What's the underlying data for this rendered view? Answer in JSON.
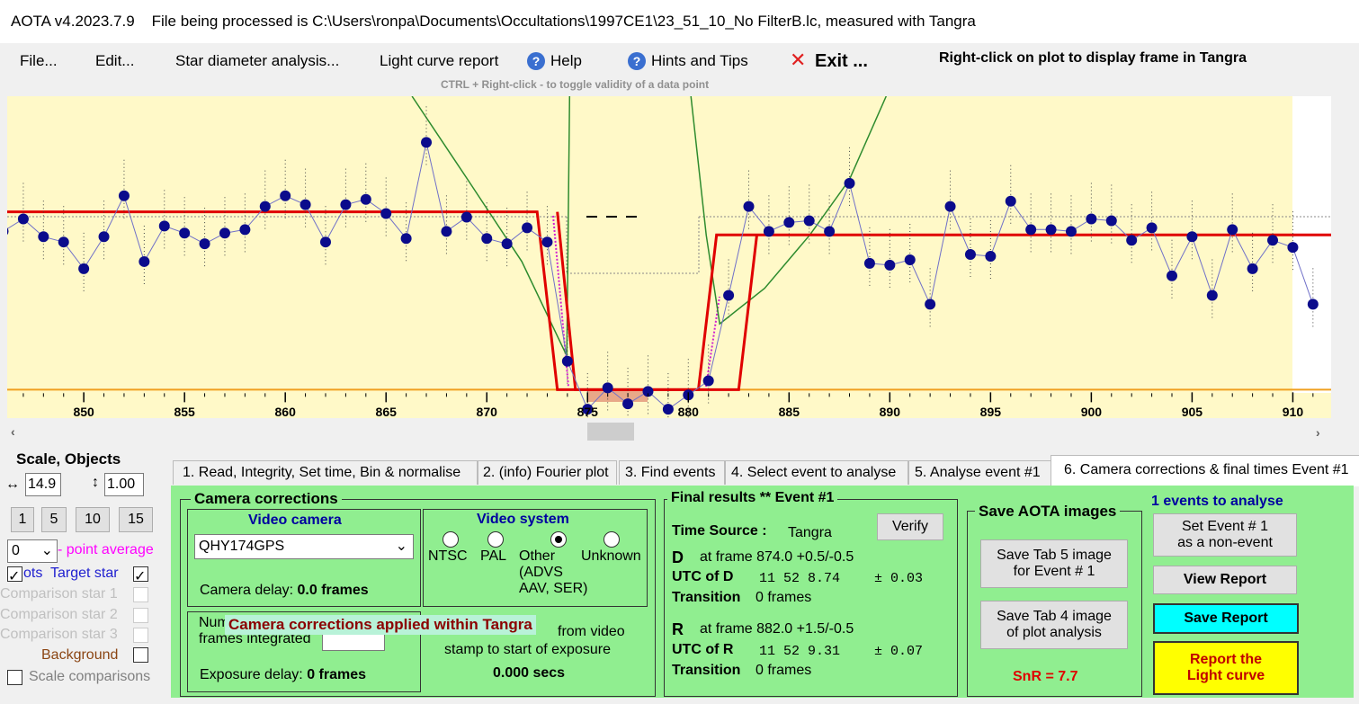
{
  "title_bar": {
    "app": "AOTA v4.2023.7.9",
    "file": "File being processed is C:\\Users\\ronpa\\Documents\\Occultations\\1997CE1\\23_51_10_No FilterB.lc, measured with Tangra"
  },
  "menu": {
    "items": [
      "File...",
      "Edit...",
      "Star diameter analysis...",
      "Light curve report",
      "Help",
      "Hints and Tips",
      "Exit ..."
    ],
    "right_hint": "Right-click on plot to display frame in Tangra",
    "ctrl_hint": "CTRL + Right-click  -  to toggle validity of a data point"
  },
  "plot": {
    "type": "scatter",
    "xlim": [
      846.2,
      911.9
    ],
    "ylim": [
      -0.16,
      1.65
    ],
    "xticks": [
      850,
      855,
      860,
      865,
      870,
      875,
      880,
      885,
      890,
      895,
      900,
      905,
      910
    ],
    "point_color": "#0b0b8c",
    "line_color": "#7070c8",
    "x": [
      846,
      847,
      848,
      849,
      850,
      851,
      852,
      853,
      854,
      855,
      856,
      857,
      858,
      859,
      860,
      861,
      862,
      863,
      864,
      865,
      866,
      867,
      868,
      869,
      870,
      871,
      872,
      873,
      874,
      875,
      876,
      877,
      878,
      879,
      880,
      881,
      882,
      883,
      884,
      885,
      886,
      887,
      888,
      889,
      890,
      891,
      892,
      893,
      894,
      895,
      896,
      897,
      898,
      899,
      900,
      901,
      902,
      903,
      904,
      905,
      906,
      907,
      908,
      909,
      910,
      911
    ],
    "values": [
      0.89,
      0.96,
      0.86,
      0.83,
      0.68,
      0.86,
      1.09,
      0.72,
      0.92,
      0.88,
      0.82,
      0.88,
      0.9,
      1.03,
      1.09,
      1.04,
      0.83,
      1.04,
      1.07,
      0.99,
      0.85,
      1.39,
      0.89,
      0.97,
      0.85,
      0.82,
      0.91,
      0.83,
      0.16,
      -0.11,
      0.01,
      -0.08,
      -0.01,
      -0.11,
      -0.03,
      0.05,
      0.53,
      1.03,
      0.89,
      0.94,
      0.95,
      0.89,
      1.16,
      0.71,
      0.7,
      0.73,
      0.48,
      1.03,
      0.76,
      0.75,
      1.06,
      0.9,
      0.9,
      0.89,
      0.96,
      0.95,
      0.84,
      0.91,
      0.64,
      0.86,
      0.53,
      0.9,
      0.68,
      0.84,
      0.8,
      0.48
    ],
    "model": {
      "color": "#e00000",
      "lines": [
        {
          "x": [
            846.2,
            872.5,
            873.5,
            880.5,
            881.4,
            911.9
          ],
          "values": [
            1.0,
            1.0,
            0,
            0,
            0.87,
            0.87
          ]
        },
        {
          "x": [
            873.5,
            874.4,
            882.5,
            883.4
          ],
          "values": [
            1.0,
            0,
            0,
            0.87
          ]
        }
      ]
    },
    "fit": {
      "color": "#2e8b2e",
      "x": [
        866.29,
        869.06,
        871.74,
        873.97,
        874.11,
        null,
        880.13,
        880.89,
        881.56,
        883.79,
        886.03,
        887.99,
        889.82
      ],
      "values": [
        1.65,
        1.18,
        0.72,
        0.19,
        1.65,
        null,
        1.65,
        0.87,
        0.37,
        0.57,
        0.87,
        1.18,
        1.65
      ]
    }
  },
  "left_panel": {
    "title": "Scale,  Objects",
    "scale_x": "14.9",
    "scale_y": "1.00",
    "buttons": [
      "1",
      "5",
      "10",
      "15"
    ],
    "average": "0",
    "average_label": "- point average",
    "plots": "ots",
    "objects": [
      "Target star",
      "Comparison star 1",
      "Comparison star 2",
      "Comparison star 3",
      "Background",
      "Scale comparisons"
    ]
  },
  "tabs": [
    "1.  Read, Integrity, Set time, Bin & normalise",
    "2. (info)  Fourier plot",
    "3. Find events",
    "4. Select event to analyse",
    "5. Analyse event #1",
    "6. Camera corrections & final times Event #1"
  ],
  "camera": {
    "title": "Camera corrections",
    "video_camera": "Video camera",
    "camera_model": "QHY174GPS",
    "camera_delay_label": "Camera delay: ",
    "camera_delay": "0.0 frames",
    "video_system": "Video system",
    "systems": [
      "NTSC",
      "PAL",
      "Other\n(ADVS\nAAV, SER)",
      "Unknown"
    ],
    "frames_integrated": "Num\nframes integrated",
    "overlay": "Camera corrections applied within Tangra",
    "offset_1": "from video",
    "offset_2": "stamp to start of exposure",
    "offset_value": "0.000 secs",
    "exposure_delay_label": "Exposure delay: ",
    "exposure_delay": "0 frames"
  },
  "results": {
    "title": "Final results  **  Event #1",
    "time_source_label": "Time Source :",
    "time_source": "Tangra",
    "verify": "Verify",
    "d": {
      "name": "D",
      "frame": "at frame 874.0  +0.5/-0.5",
      "utc_label": "UTC of D",
      "utc": "11 52  8.74",
      "err": "± 0.03",
      "transition_label": "Transition",
      "transition": "0 frames"
    },
    "r": {
      "name": "R",
      "frame": "at frame 882.0  +1.5/-0.5",
      "utc_label": "UTC of R",
      "utc": "11 52  9.31",
      "err": "± 0.07",
      "transition_label": "Transition",
      "transition": "0 frames"
    }
  },
  "save": {
    "title": "Save AOTA images",
    "tab5": "Save Tab 5 image\nfor Event # 1",
    "tab4": "Save Tab 4 image\nof plot analysis",
    "snr": "SnR = 7.7"
  },
  "actions": {
    "events": "1  events to analyse",
    "non_event": "Set Event # 1\nas a non-event",
    "view": "View Report",
    "save": "Save Report",
    "report": "Report the\nLight curve"
  }
}
